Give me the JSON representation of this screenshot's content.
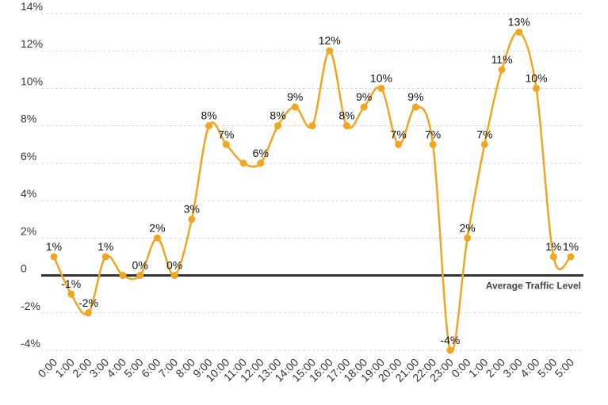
{
  "chart_data": {
    "type": "line",
    "title": "",
    "xlabel": "",
    "ylabel": "",
    "ylim": [
      -4,
      14
    ],
    "yticks": [
      -4,
      -2,
      0,
      2,
      4,
      6,
      8,
      10,
      12,
      14
    ],
    "ytick_labels": [
      "-4%",
      "-2%",
      "0",
      "2%",
      "4%",
      "6%",
      "8%",
      "10%",
      "12%",
      "14%"
    ],
    "grid": "horizontal dashed",
    "colors": {
      "series": "#F2A51F",
      "zero_line": "#333333",
      "grid": "#d6d6d6"
    },
    "x": [
      "0:00",
      "1:00",
      "2:00",
      "3:00",
      "4:00",
      "5:00",
      "6:00",
      "7:00",
      "8:00",
      "9:00",
      "10:00",
      "11:00",
      "12:00",
      "13:00",
      "14:00",
      "15:00",
      "16:00",
      "17:00",
      "18:00",
      "19:00",
      "20:00",
      "21:00",
      "22:00",
      "23:00",
      "0:00",
      "1:00",
      "2:00",
      "3:00",
      "4:00",
      "5:00",
      "5:00"
    ],
    "series": [
      {
        "values": [
          1,
          -1,
          -2,
          1,
          0,
          0,
          2,
          0,
          3,
          8,
          7,
          6,
          6,
          8,
          9,
          8,
          12,
          8,
          9,
          10,
          7,
          9,
          7,
          -4,
          2,
          7,
          11,
          13,
          10,
          1,
          1
        ],
        "labels": [
          "1%",
          "-1%",
          "-2%",
          "1%",
          "",
          "0%",
          "2%",
          "0%",
          "3%",
          "8%",
          "7%",
          "",
          "6%",
          "8%",
          "9%",
          "",
          "12%",
          "8%",
          "9%",
          "10%",
          "7%",
          "9%",
          "7%",
          "-4%",
          "2%",
          "7%",
          "11%",
          "13%",
          "10%",
          "1%",
          "1%"
        ]
      }
    ],
    "annotations": [
      {
        "text": "Average Traffic Level",
        "y": 0
      }
    ]
  }
}
